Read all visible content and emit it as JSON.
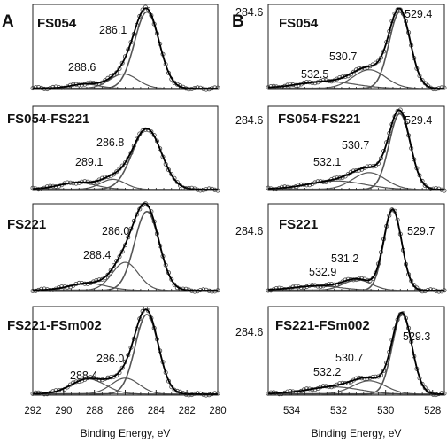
{
  "chart_data": [
    {
      "type": "line",
      "panel_label": "A",
      "xlabel": "Binding Energy, eV",
      "xlim": [
        292,
        280
      ],
      "x_ticks": [
        "292",
        "290",
        "288",
        "286",
        "284",
        "282",
        "280"
      ],
      "colors": {
        "fit": "#000000",
        "component": "#555555",
        "data": "#444444"
      },
      "spectra": [
        {
          "name": "FS054",
          "total_norm": 0.92,
          "base_norm": 0.01,
          "peaks": [
            {
              "label": "284.6",
              "center": 284.6,
              "height": 0.9,
              "width": 0.8
            },
            {
              "label": "286.1",
              "center": 286.1,
              "height": 0.17,
              "width": 0.9
            },
            {
              "label": "288.6",
              "center": 288.6,
              "height": 0.05,
              "width": 0.9
            }
          ]
        },
        {
          "name": "FS054-FS221",
          "total_norm": 0.74,
          "base_norm": 0.01,
          "peaks": [
            {
              "label": "284.6",
              "center": 284.6,
              "height": 0.72,
              "width": 0.95
            },
            {
              "label": "286.8",
              "center": 286.8,
              "height": 0.12,
              "width": 0.8
            },
            {
              "label": "289.1",
              "center": 289.1,
              "height": 0.08,
              "width": 1.2
            }
          ]
        },
        {
          "name": "FS221",
          "total_norm": 0.92,
          "base_norm": 0.01,
          "peaks": [
            {
              "label": "284.6",
              "center": 284.6,
              "height": 0.9,
              "width": 0.8
            },
            {
              "label": "286.0",
              "center": 286.0,
              "height": 0.32,
              "width": 0.85
            },
            {
              "label": "288.4",
              "center": 288.4,
              "height": 0.08,
              "width": 1.2
            }
          ]
        },
        {
          "name": "FS221-FSm002",
          "total_norm": 0.92,
          "base_norm": 0.01,
          "peaks": [
            {
              "label": "284.6",
              "center": 284.6,
              "height": 0.9,
              "width": 0.75
            },
            {
              "label": "286.0",
              "center": 286.0,
              "height": 0.18,
              "width": 0.9
            },
            {
              "label": "288.4",
              "center": 288.4,
              "height": 0.17,
              "width": 1.1
            }
          ]
        }
      ]
    },
    {
      "type": "line",
      "panel_label": "B",
      "xlabel": "Binding Energy, eV",
      "xlim": [
        535,
        527.5
      ],
      "x_ticks": [
        "534",
        "532",
        "530",
        "528"
      ],
      "colors": {
        "fit": "#000000",
        "component": "#555555",
        "data": "#444444"
      },
      "spectra": [
        {
          "name": "FS054",
          "total_norm": 0.96,
          "base_norm": 0.01,
          "peaks": [
            {
              "label": "529.4",
              "center": 529.4,
              "height": 0.9,
              "width": 0.45
            },
            {
              "label": "530.7",
              "center": 530.7,
              "height": 0.22,
              "width": 0.7
            },
            {
              "label": "532.5",
              "center": 532.5,
              "height": 0.08,
              "width": 1.2
            }
          ]
        },
        {
          "name": "FS054-FS221",
          "total_norm": 0.96,
          "base_norm": 0.01,
          "peaks": [
            {
              "label": "529.4",
              "center": 529.4,
              "height": 0.9,
              "width": 0.45
            },
            {
              "label": "530.7",
              "center": 530.7,
              "height": 0.2,
              "width": 0.7
            },
            {
              "label": "532.1",
              "center": 532.1,
              "height": 0.1,
              "width": 1.2
            }
          ]
        },
        {
          "name": "FS221",
          "total_norm": 0.96,
          "base_norm": 0.01,
          "peaks": [
            {
              "label": "529.7",
              "center": 529.7,
              "height": 0.92,
              "width": 0.38
            },
            {
              "label": "531.2",
              "center": 531.2,
              "height": 0.12,
              "width": 0.6
            },
            {
              "label": "532.9",
              "center": 532.9,
              "height": 0.05,
              "width": 1.0
            }
          ]
        },
        {
          "name": "FS221-FSm002",
          "total_norm": 0.92,
          "base_norm": 0.01,
          "peaks": [
            {
              "label": "529.3",
              "center": 529.3,
              "height": 0.9,
              "width": 0.42
            },
            {
              "label": "530.7",
              "center": 530.7,
              "height": 0.15,
              "width": 0.7
            },
            {
              "label": "532.2",
              "center": 532.2,
              "height": 0.08,
              "width": 1.1
            }
          ]
        }
      ]
    }
  ]
}
